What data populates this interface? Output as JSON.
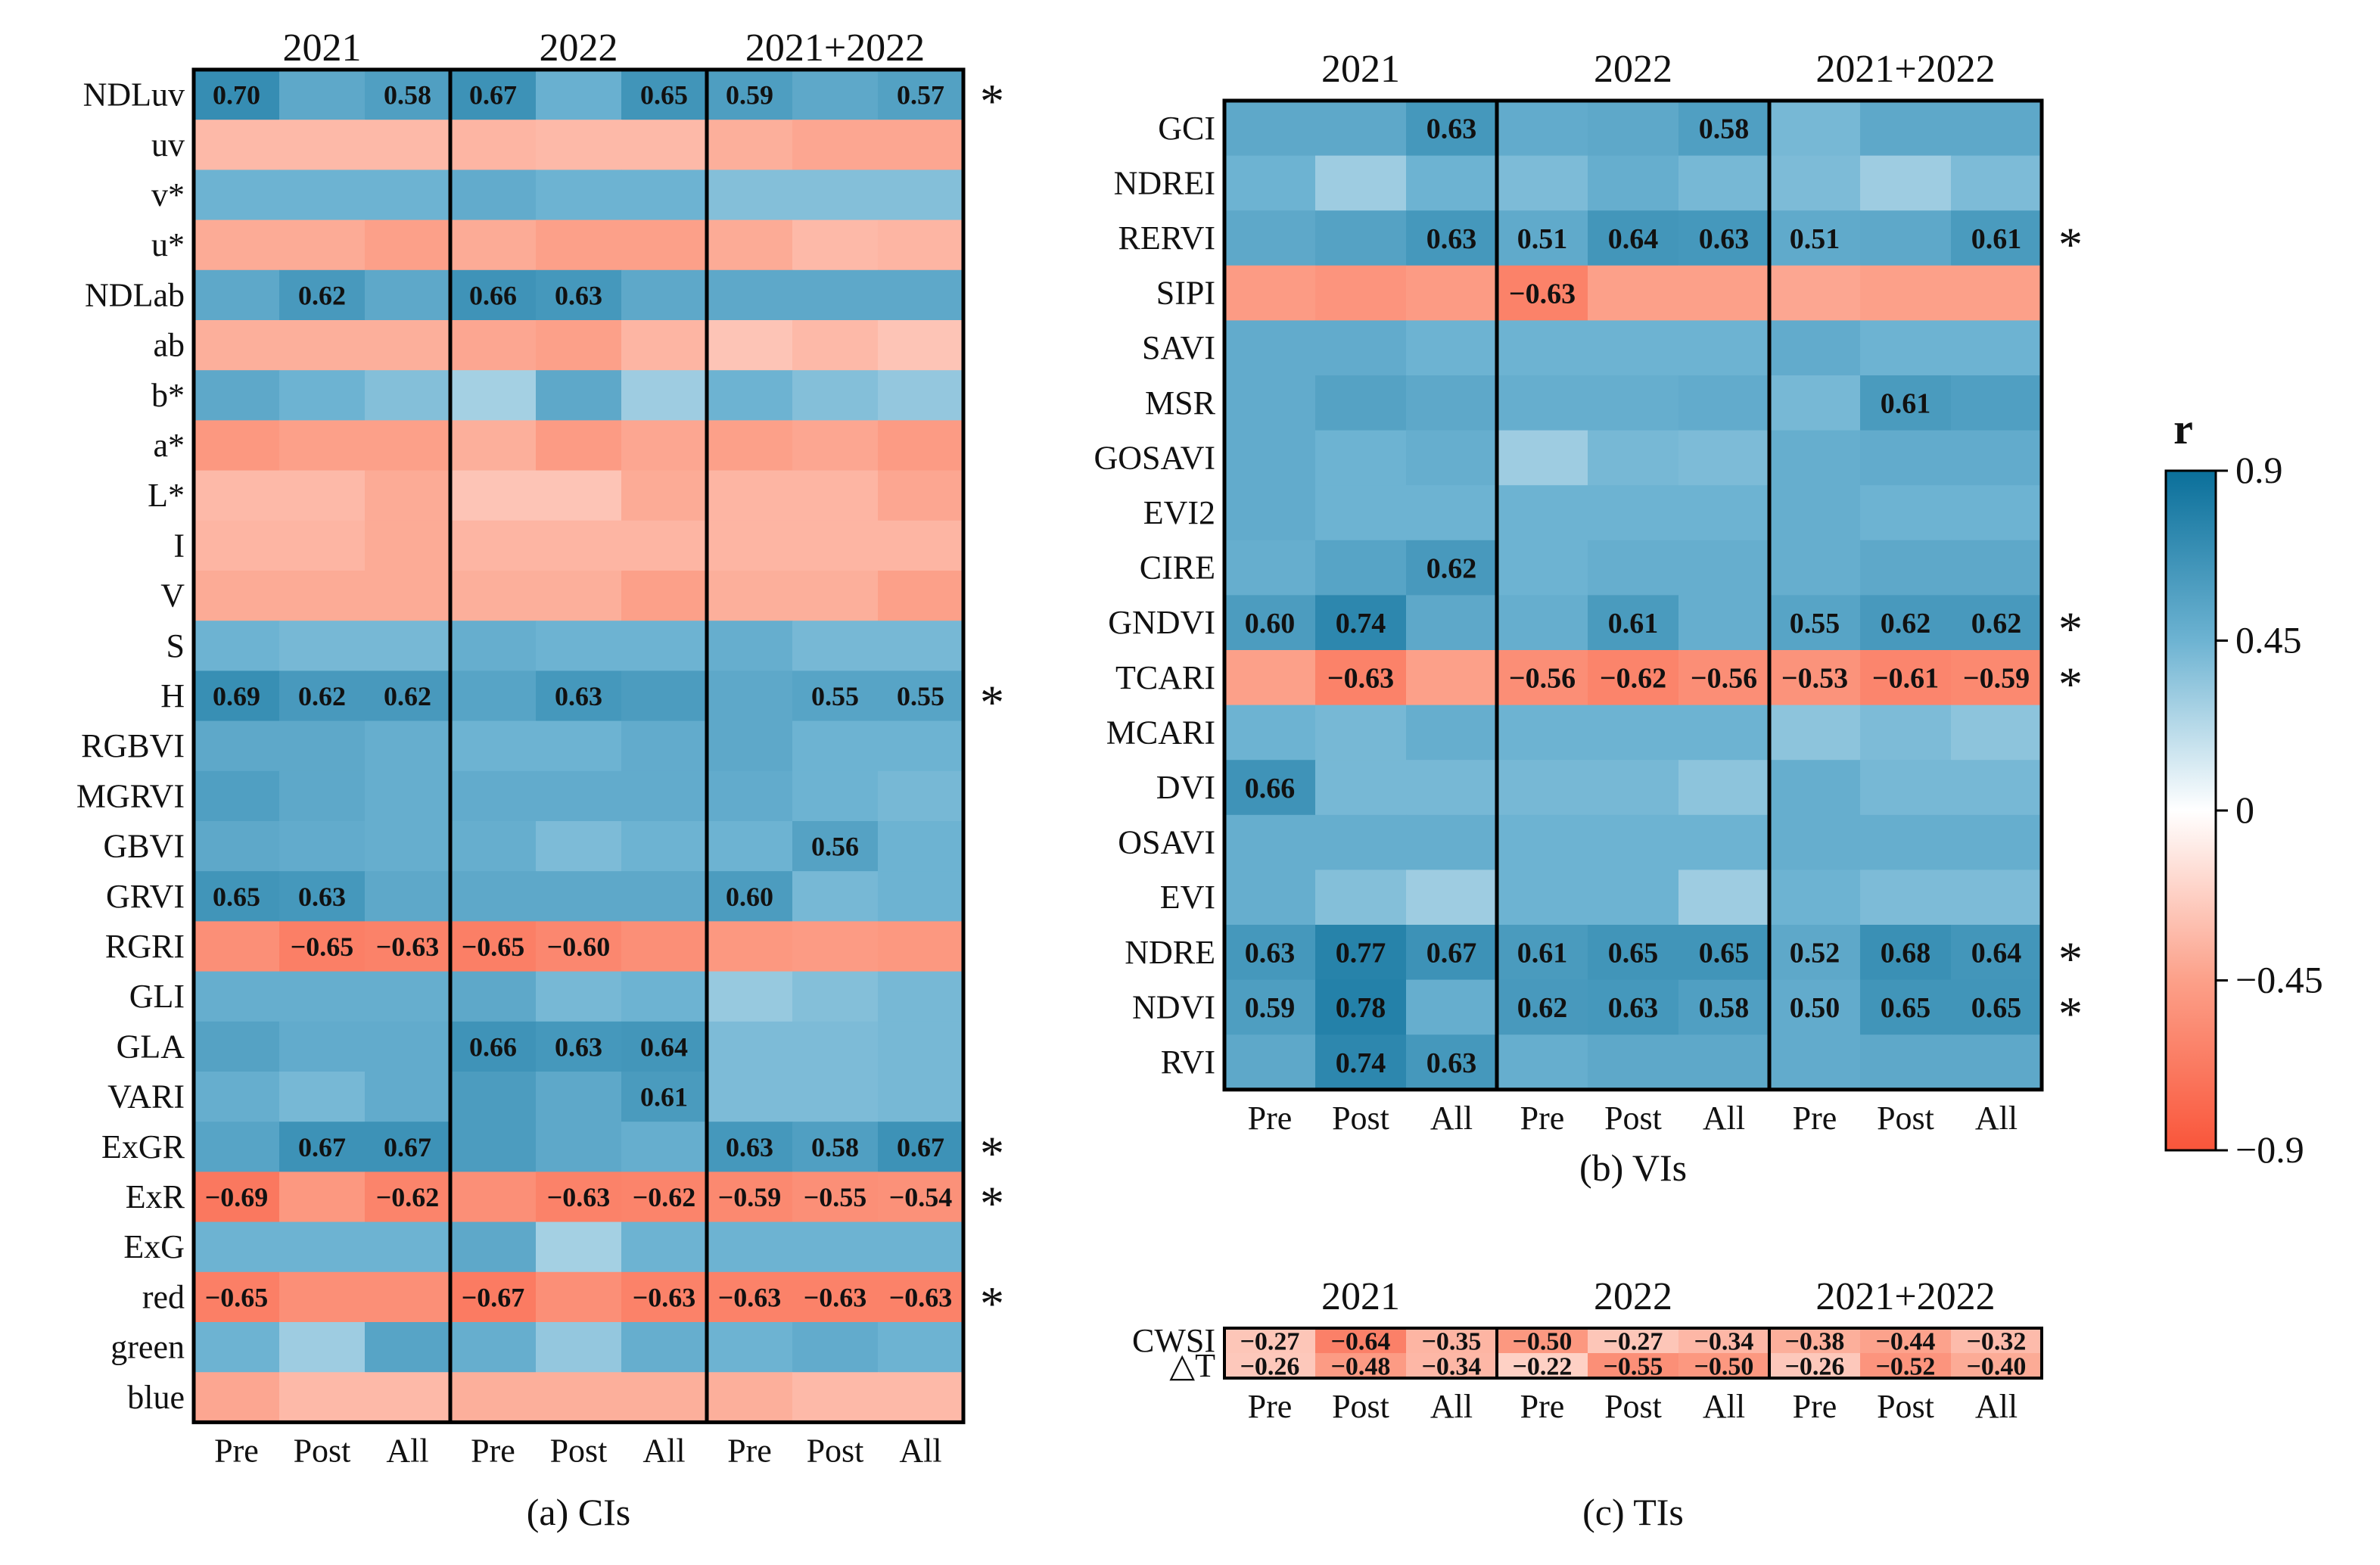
{
  "colorbar": {
    "label": "r",
    "ticks": [
      {
        "value": 0.9,
        "label": "0.9"
      },
      {
        "value": 0.45,
        "label": "0.45"
      },
      {
        "value": 0,
        "label": "0"
      },
      {
        "value": -0.45,
        "label": "−0.45"
      },
      {
        "value": -0.9,
        "label": "−0.9"
      }
    ],
    "range": [
      -0.9,
      0.9
    ],
    "colors": {
      "pos_strong": "#0a6f9a",
      "neutral": "#ffffff",
      "neg_strong": "#f9553a"
    }
  },
  "chart_data": [
    {
      "type": "heatmap",
      "caption": "(a) CIs",
      "years": [
        "2021",
        "2022",
        "2021+2022"
      ],
      "columns": [
        "Pre",
        "Post",
        "All"
      ],
      "rows": [
        "NDLuv",
        "uv",
        "v*",
        "u*",
        "NDLab",
        "ab",
        "b*",
        "a*",
        "L*",
        "I",
        "V",
        "S",
        "H",
        "RGBVI",
        "MGRVI",
        "GBVI",
        "GRVI",
        "RGRI",
        "GLI",
        "GLA",
        "VARI",
        "ExGR",
        "ExR",
        "ExG",
        "red",
        "green",
        "blue"
      ],
      "starred": [
        "NDLuv",
        "H",
        "ExGR",
        "ExR",
        "red"
      ],
      "values": [
        [
          0.7,
          0.52,
          0.58,
          0.67,
          0.47,
          0.65,
          0.59,
          0.52,
          0.57
        ],
        [
          -0.33,
          -0.33,
          -0.33,
          -0.35,
          -0.33,
          -0.33,
          -0.38,
          -0.42,
          -0.42
        ],
        [
          0.45,
          0.45,
          0.45,
          0.5,
          0.45,
          0.45,
          0.38,
          0.38,
          0.38
        ],
        [
          -0.4,
          -0.4,
          -0.45,
          -0.4,
          -0.45,
          -0.45,
          -0.4,
          -0.33,
          -0.35
        ],
        [
          0.52,
          0.62,
          0.52,
          0.66,
          0.63,
          0.52,
          0.52,
          0.52,
          0.52
        ],
        [
          -0.38,
          -0.38,
          -0.38,
          -0.42,
          -0.45,
          -0.35,
          -0.28,
          -0.33,
          -0.28
        ],
        [
          0.52,
          0.45,
          0.38,
          0.28,
          0.52,
          0.3,
          0.45,
          0.38,
          0.33
        ],
        [
          -0.5,
          -0.45,
          -0.45,
          -0.38,
          -0.48,
          -0.42,
          -0.45,
          -0.42,
          -0.48
        ],
        [
          -0.33,
          -0.33,
          -0.4,
          -0.28,
          -0.28,
          -0.4,
          -0.35,
          -0.35,
          -0.42
        ],
        [
          -0.35,
          -0.35,
          -0.4,
          -0.35,
          -0.35,
          -0.35,
          -0.35,
          -0.35,
          -0.35
        ],
        [
          -0.4,
          -0.4,
          -0.4,
          -0.38,
          -0.38,
          -0.45,
          -0.38,
          -0.38,
          -0.45
        ],
        [
          0.45,
          0.42,
          0.42,
          0.48,
          0.45,
          0.45,
          0.48,
          0.42,
          0.42
        ],
        [
          0.69,
          0.62,
          0.62,
          0.55,
          0.63,
          0.6,
          0.52,
          0.55,
          0.55
        ],
        [
          0.52,
          0.52,
          0.48,
          0.45,
          0.45,
          0.5,
          0.52,
          0.45,
          0.45
        ],
        [
          0.58,
          0.52,
          0.48,
          0.5,
          0.5,
          0.5,
          0.5,
          0.45,
          0.42
        ],
        [
          0.52,
          0.5,
          0.48,
          0.48,
          0.4,
          0.45,
          0.45,
          0.56,
          0.45
        ],
        [
          0.65,
          0.63,
          0.52,
          0.52,
          0.52,
          0.52,
          0.6,
          0.42,
          0.45
        ],
        [
          -0.55,
          -0.65,
          -0.63,
          -0.65,
          -0.6,
          -0.55,
          -0.5,
          -0.48,
          -0.5
        ],
        [
          0.48,
          0.48,
          0.48,
          0.52,
          0.42,
          0.45,
          0.32,
          0.38,
          0.42
        ],
        [
          0.56,
          0.5,
          0.5,
          0.66,
          0.63,
          0.64,
          0.4,
          0.4,
          0.42
        ],
        [
          0.48,
          0.42,
          0.5,
          0.6,
          0.52,
          0.61,
          0.4,
          0.4,
          0.42
        ],
        [
          0.55,
          0.67,
          0.67,
          0.6,
          0.52,
          0.48,
          0.63,
          0.58,
          0.67
        ],
        [
          -0.69,
          -0.5,
          -0.62,
          -0.55,
          -0.63,
          -0.62,
          -0.59,
          -0.55,
          -0.54
        ],
        [
          0.45,
          0.45,
          0.45,
          0.52,
          0.28,
          0.45,
          0.45,
          0.45,
          0.45
        ],
        [
          -0.65,
          -0.55,
          -0.55,
          -0.67,
          -0.55,
          -0.63,
          -0.63,
          -0.63,
          -0.63
        ],
        [
          0.45,
          0.3,
          0.55,
          0.48,
          0.33,
          0.48,
          0.45,
          0.5,
          0.45
        ],
        [
          -0.42,
          -0.33,
          -0.33,
          -0.38,
          -0.38,
          -0.38,
          -0.38,
          -0.33,
          -0.33
        ]
      ],
      "labeled": [
        [
          0.7,
          null,
          0.58,
          0.67,
          null,
          0.65,
          0.59,
          null,
          0.57
        ],
        [
          null,
          null,
          null,
          null,
          null,
          null,
          null,
          null,
          null
        ],
        [
          null,
          null,
          null,
          null,
          null,
          null,
          null,
          null,
          null
        ],
        [
          null,
          null,
          null,
          null,
          null,
          null,
          null,
          null,
          null
        ],
        [
          null,
          0.62,
          null,
          0.66,
          0.63,
          null,
          null,
          null,
          null
        ],
        [
          null,
          null,
          null,
          null,
          null,
          null,
          null,
          null,
          null
        ],
        [
          null,
          null,
          null,
          null,
          null,
          null,
          null,
          null,
          null
        ],
        [
          null,
          null,
          null,
          null,
          null,
          null,
          null,
          null,
          null
        ],
        [
          null,
          null,
          null,
          null,
          null,
          null,
          null,
          null,
          null
        ],
        [
          null,
          null,
          null,
          null,
          null,
          null,
          null,
          null,
          null
        ],
        [
          null,
          null,
          null,
          null,
          null,
          null,
          null,
          null,
          null
        ],
        [
          null,
          null,
          null,
          null,
          null,
          null,
          null,
          null,
          null
        ],
        [
          0.69,
          0.62,
          0.62,
          null,
          0.63,
          null,
          null,
          0.55,
          0.55
        ],
        [
          null,
          null,
          null,
          null,
          null,
          null,
          null,
          null,
          null
        ],
        [
          null,
          null,
          null,
          null,
          null,
          null,
          null,
          null,
          null
        ],
        [
          null,
          null,
          null,
          null,
          null,
          null,
          null,
          0.56,
          null
        ],
        [
          0.65,
          0.63,
          null,
          null,
          null,
          null,
          0.6,
          null,
          null
        ],
        [
          null,
          -0.65,
          -0.63,
          -0.65,
          -0.6,
          null,
          null,
          null,
          null
        ],
        [
          null,
          null,
          null,
          null,
          null,
          null,
          null,
          null,
          null
        ],
        [
          null,
          null,
          null,
          0.66,
          0.63,
          0.64,
          null,
          null,
          null
        ],
        [
          null,
          null,
          null,
          null,
          null,
          0.61,
          null,
          null,
          null
        ],
        [
          null,
          0.67,
          0.67,
          null,
          null,
          null,
          0.63,
          0.58,
          0.67
        ],
        [
          -0.69,
          null,
          -0.62,
          null,
          -0.63,
          -0.62,
          -0.59,
          -0.55,
          -0.54
        ],
        [
          null,
          null,
          null,
          null,
          null,
          null,
          null,
          null,
          null
        ],
        [
          -0.65,
          null,
          null,
          -0.67,
          null,
          -0.63,
          -0.63,
          -0.63,
          -0.63
        ],
        [
          null,
          null,
          null,
          null,
          null,
          null,
          null,
          null,
          null
        ],
        [
          null,
          null,
          null,
          null,
          null,
          null,
          null,
          null,
          null
        ]
      ]
    },
    {
      "type": "heatmap",
      "caption": "(b) VIs",
      "years": [
        "2021",
        "2022",
        "2021+2022"
      ],
      "columns": [
        "Pre",
        "Post",
        "All"
      ],
      "rows": [
        "GCI",
        "NDREI",
        "RERVI",
        "SIPI",
        "SAVI",
        "MSR",
        "GOSAVI",
        "EVI2",
        "CIRE",
        "GNDVI",
        "TCARI",
        "MCARI",
        "DVI",
        "OSAVI",
        "EVI",
        "NDRE",
        "NDVI",
        "RVI"
      ],
      "starred": [
        "RERVI",
        "GNDVI",
        "TCARI",
        "NDRE",
        "NDVI"
      ],
      "values": [
        [
          0.52,
          0.52,
          0.63,
          0.5,
          0.52,
          0.58,
          0.42,
          0.52,
          0.52
        ],
        [
          0.45,
          0.3,
          0.45,
          0.4,
          0.48,
          0.42,
          0.4,
          0.3,
          0.4
        ],
        [
          0.52,
          0.56,
          0.63,
          0.51,
          0.64,
          0.63,
          0.51,
          0.52,
          0.61
        ],
        [
          -0.48,
          -0.52,
          -0.48,
          -0.63,
          -0.45,
          -0.45,
          -0.42,
          -0.45,
          -0.45
        ],
        [
          0.5,
          0.5,
          0.45,
          0.45,
          0.45,
          0.45,
          0.5,
          0.45,
          0.45
        ],
        [
          0.5,
          0.56,
          0.52,
          0.48,
          0.48,
          0.5,
          0.42,
          0.61,
          0.58
        ],
        [
          0.5,
          0.45,
          0.48,
          0.3,
          0.42,
          0.4,
          0.48,
          0.5,
          0.5
        ],
        [
          0.5,
          0.45,
          0.45,
          0.45,
          0.45,
          0.45,
          0.48,
          0.45,
          0.45
        ],
        [
          0.48,
          0.55,
          0.62,
          0.45,
          0.48,
          0.48,
          0.48,
          0.52,
          0.52
        ],
        [
          0.6,
          0.74,
          0.52,
          0.48,
          0.61,
          0.48,
          0.55,
          0.62,
          0.62
        ],
        [
          -0.45,
          -0.63,
          -0.45,
          -0.56,
          -0.62,
          -0.56,
          -0.53,
          -0.61,
          -0.59
        ],
        [
          0.45,
          0.42,
          0.48,
          0.45,
          0.45,
          0.45,
          0.35,
          0.4,
          0.35
        ],
        [
          0.66,
          0.42,
          0.42,
          0.42,
          0.42,
          0.35,
          0.48,
          0.42,
          0.42
        ],
        [
          0.48,
          0.48,
          0.48,
          0.45,
          0.45,
          0.45,
          0.48,
          0.48,
          0.48
        ],
        [
          0.48,
          0.38,
          0.3,
          0.45,
          0.45,
          0.3,
          0.45,
          0.4,
          0.4
        ],
        [
          0.63,
          0.77,
          0.67,
          0.61,
          0.65,
          0.65,
          0.52,
          0.68,
          0.64
        ],
        [
          0.59,
          0.78,
          0.48,
          0.62,
          0.63,
          0.58,
          0.5,
          0.65,
          0.65
        ],
        [
          0.52,
          0.74,
          0.63,
          0.48,
          0.52,
          0.52,
          0.5,
          0.52,
          0.52
        ]
      ],
      "labeled": [
        [
          null,
          null,
          0.63,
          null,
          null,
          0.58,
          null,
          null,
          null
        ],
        [
          null,
          null,
          null,
          null,
          null,
          null,
          null,
          null,
          null
        ],
        [
          null,
          null,
          0.63,
          0.51,
          0.64,
          0.63,
          0.51,
          null,
          0.61
        ],
        [
          null,
          null,
          null,
          -0.63,
          null,
          null,
          null,
          null,
          null
        ],
        [
          null,
          null,
          null,
          null,
          null,
          null,
          null,
          null,
          null
        ],
        [
          null,
          null,
          null,
          null,
          null,
          null,
          null,
          0.61,
          null
        ],
        [
          null,
          null,
          null,
          null,
          null,
          null,
          null,
          null,
          null
        ],
        [
          null,
          null,
          null,
          null,
          null,
          null,
          null,
          null,
          null
        ],
        [
          null,
          null,
          0.62,
          null,
          null,
          null,
          null,
          null,
          null
        ],
        [
          0.6,
          0.74,
          null,
          null,
          0.61,
          null,
          0.55,
          0.62,
          0.62
        ],
        [
          null,
          -0.63,
          null,
          -0.56,
          -0.62,
          -0.56,
          -0.53,
          -0.61,
          -0.59
        ],
        [
          null,
          null,
          null,
          null,
          null,
          null,
          null,
          null,
          null
        ],
        [
          0.66,
          null,
          null,
          null,
          null,
          null,
          null,
          null,
          null
        ],
        [
          null,
          null,
          null,
          null,
          null,
          null,
          null,
          null,
          null
        ],
        [
          null,
          null,
          null,
          null,
          null,
          null,
          null,
          null,
          null
        ],
        [
          0.63,
          0.77,
          0.67,
          0.61,
          0.65,
          0.65,
          0.52,
          0.68,
          0.64
        ],
        [
          0.59,
          0.78,
          null,
          0.62,
          0.63,
          0.58,
          0.5,
          0.65,
          0.65
        ],
        [
          null,
          0.74,
          0.63,
          null,
          null,
          null,
          null,
          null,
          null
        ]
      ]
    },
    {
      "type": "heatmap",
      "caption": "(c) TIs",
      "years": [
        "2021",
        "2022",
        "2021+2022"
      ],
      "columns": [
        "Pre",
        "Post",
        "All"
      ],
      "rows": [
        "CWSI",
        "△T"
      ],
      "starred": [],
      "values": [
        [
          -0.27,
          -0.64,
          -0.35,
          -0.5,
          -0.27,
          -0.34,
          -0.38,
          -0.44,
          -0.32
        ],
        [
          -0.26,
          -0.48,
          -0.34,
          -0.22,
          -0.55,
          -0.5,
          -0.26,
          -0.52,
          -0.4
        ]
      ],
      "labeled": [
        [
          -0.27,
          -0.64,
          -0.35,
          -0.5,
          -0.27,
          -0.34,
          -0.38,
          -0.44,
          -0.32
        ],
        [
          -0.26,
          -0.48,
          -0.34,
          -0.22,
          -0.55,
          -0.5,
          -0.26,
          -0.52,
          -0.4
        ]
      ]
    }
  ],
  "star_symbol": "*"
}
